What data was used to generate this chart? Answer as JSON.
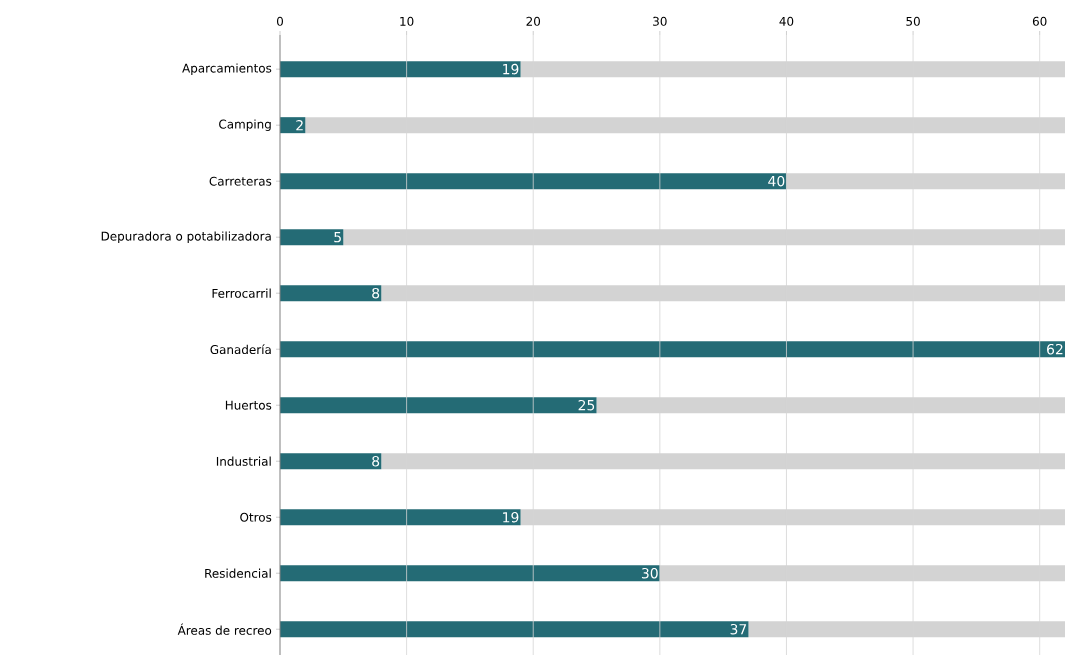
{
  "chart_data": {
    "type": "bar",
    "orientation": "horizontal",
    "stacked": true,
    "categories": [
      "Aparcamientos",
      "Camping",
      "Carreteras",
      "Depuradora o potabilizadora",
      "Ferrocarril",
      "Ganadería",
      "Huertos",
      "Industrial",
      "Otros",
      "Residencial",
      "Áreas de recreo"
    ],
    "series": [
      {
        "color": "#246b75",
        "values": [
          19,
          2,
          40,
          5,
          8,
          62,
          25,
          8,
          19,
          30,
          37
        ],
        "value_labels": [
          "19",
          "2",
          "40",
          "5",
          "8",
          "62",
          "25",
          "8",
          "19",
          "30",
          "37"
        ]
      },
      {
        "color": "#d3d3d3",
        "values": [
          43,
          60,
          22,
          57,
          54,
          0,
          37,
          54,
          43,
          32,
          25
        ]
      }
    ],
    "xlim": [
      0,
      62
    ],
    "xticks": [
      0,
      10,
      20,
      30,
      40,
      50,
      60
    ],
    "grid": "x"
  }
}
